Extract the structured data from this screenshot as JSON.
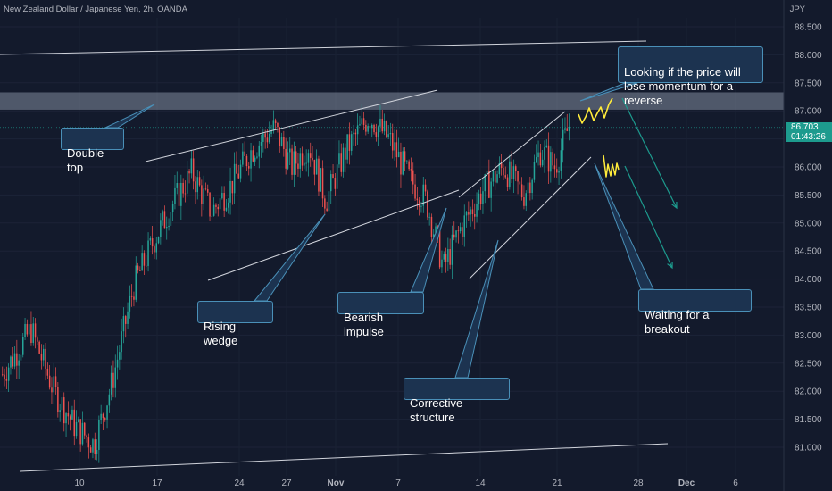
{
  "header": {
    "title": "New Zealand Dollar / Japanese Yen, 2h, OANDA",
    "currency": "JPY"
  },
  "price_tag": {
    "price": "86.703",
    "countdown": "01:43:26",
    "color": "#1d9b8e"
  },
  "colors": {
    "background": "#131a2c",
    "up_candle": "#26a69a",
    "down_candle": "#ef5350",
    "trendline": "#d1d4dc",
    "callout_bg": "#1c3350",
    "callout_border": "#4a90b8",
    "arrow": "#1d9b8e",
    "scribble": "#ffeb3b",
    "zone": "#9aa3b5"
  },
  "annotations": {
    "double_top": "Double top",
    "rising_wedge": "Rising wedge",
    "bearish_impulse": "Bearish impulse",
    "corrective_structure": "Corrective structure",
    "momentum": "Looking if the price will\nlose momentum for a reverse",
    "breakout": "Waiting for a breakout"
  },
  "chart_data": {
    "type": "candlestick",
    "title": "New Zealand Dollar / Japanese Yen, 2h, OANDA",
    "symbol": "NZDJPY",
    "timeframe": "2h",
    "y_unit": "JPY",
    "ylim": [
      80.6,
      88.9
    ],
    "y_ticks": [
      "88.500",
      "88.000",
      "87.500",
      "87.000",
      "86.500",
      "86.000",
      "85.500",
      "85.000",
      "84.500",
      "84.000",
      "83.500",
      "83.000",
      "82.500",
      "82.000",
      "81.500",
      "81.000"
    ],
    "x_ticks": [
      "10",
      "17",
      "24",
      "27",
      "Nov",
      "7",
      "14",
      "21",
      "28",
      "Dec",
      "6"
    ],
    "last_price": 86.703,
    "resistance_zone": [
      87.02,
      87.33
    ],
    "price_path": [
      [
        0,
        82.3
      ],
      [
        1.0,
        83.1
      ],
      [
        1.8,
        82.0
      ],
      [
        2.5,
        81.4
      ],
      [
        3.2,
        81.05
      ],
      [
        3.8,
        82.1
      ],
      [
        4.6,
        83.9
      ],
      [
        5.3,
        84.7
      ],
      [
        5.9,
        85.3
      ],
      [
        6.6,
        85.9
      ],
      [
        7.3,
        85.2
      ],
      [
        7.9,
        85.6
      ],
      [
        8.7,
        86.3
      ],
      [
        9.5,
        86.7
      ],
      [
        10.1,
        86.0
      ],
      [
        10.7,
        86.4
      ],
      [
        11.3,
        85.4
      ],
      [
        12.0,
        86.3
      ],
      [
        12.8,
        86.9
      ],
      [
        13.5,
        86.5
      ],
      [
        14.2,
        85.8
      ],
      [
        14.8,
        85.4
      ],
      [
        15.4,
        84.2
      ],
      [
        16.0,
        84.9
      ],
      [
        16.8,
        85.6
      ],
      [
        17.5,
        86.0
      ],
      [
        18.2,
        85.5
      ],
      [
        18.8,
        86.3
      ],
      [
        19.3,
        86.0
      ],
      [
        19.8,
        86.75
      ]
    ],
    "annotations": [
      "Double top",
      "Rising wedge",
      "Bearish impulse",
      "Corrective structure",
      "Looking if the price will lose momentum for a reverse",
      "Waiting for a breakout"
    ]
  }
}
